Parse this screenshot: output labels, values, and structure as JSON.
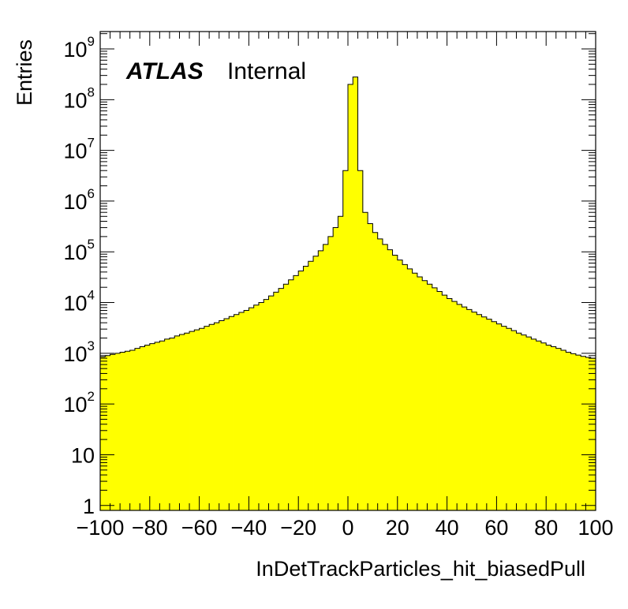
{
  "chart_data": {
    "type": "bar",
    "xlabel": "InDetTrackParticles_hit_biasedPull",
    "ylabel": "Entries",
    "annotation": {
      "atlas": "ATLAS",
      "status": "Internal"
    },
    "xlim": [
      -100,
      100
    ],
    "ylim": [
      0.8,
      2200000000
    ],
    "log_y": true,
    "grid": false,
    "fill_color": "#ffff00",
    "line_color": "#000000",
    "x_ticks": [
      -100,
      -80,
      -60,
      -40,
      -20,
      0,
      20,
      40,
      60,
      80,
      100
    ],
    "x_tick_labels": [
      "−100",
      "−80",
      "−60",
      "−40",
      "−20",
      "0",
      "20",
      "40",
      "60",
      "80",
      "100"
    ],
    "y_ticks": [
      {
        "value": 1,
        "base": "1",
        "exp": ""
      },
      {
        "value": 10,
        "base": "10",
        "exp": ""
      },
      {
        "value": 100,
        "base": "10",
        "exp": "2"
      },
      {
        "value": 1000,
        "base": "10",
        "exp": "3"
      },
      {
        "value": 10000,
        "base": "10",
        "exp": "4"
      },
      {
        "value": 100000,
        "base": "10",
        "exp": "5"
      },
      {
        "value": 1000000,
        "base": "10",
        "exp": "6"
      },
      {
        "value": 10000000,
        "base": "10",
        "exp": "7"
      },
      {
        "value": 100000000,
        "base": "10",
        "exp": "8"
      },
      {
        "value": 1000000000,
        "base": "10",
        "exp": "9"
      }
    ],
    "bins": {
      "start": -100,
      "width": 2,
      "values": [
        850,
        900,
        950,
        1000,
        1050,
        1100,
        1150,
        1250,
        1350,
        1450,
        1550,
        1650,
        1750,
        1900,
        2000,
        2200,
        2350,
        2500,
        2700,
        2900,
        3100,
        3400,
        3700,
        4000,
        4400,
        4800,
        5300,
        5800,
        6400,
        7000,
        7900,
        8900,
        10000,
        11500,
        13500,
        16000,
        19000,
        23000,
        28000,
        34000,
        42000,
        52000,
        65000,
        82000,
        105000,
        140000,
        200000,
        300000,
        500000,
        4000000,
        200000000,
        280000000,
        4000000,
        600000,
        360000,
        240000,
        180000,
        140000,
        110000,
        86000,
        69000,
        56000,
        46000,
        38000,
        32000,
        27000,
        23000,
        19500,
        16500,
        14000,
        12000,
        10500,
        9200,
        8200,
        7300,
        6500,
        5800,
        5200,
        4700,
        4200,
        3800,
        3400,
        3100,
        2800,
        2500,
        2300,
        2100,
        1900,
        1750,
        1600,
        1450,
        1350,
        1250,
        1150,
        1050,
        980,
        920,
        870,
        830,
        800
      ]
    }
  }
}
